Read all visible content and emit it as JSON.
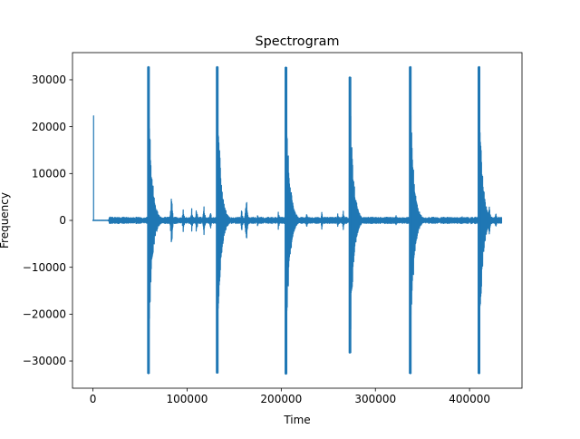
{
  "chart_data": {
    "type": "line",
    "title": "Spectrogram",
    "xlabel": "Time",
    "ylabel": "Frequency",
    "xlim": [
      -21700,
      455700
    ],
    "ylim": [
      -35800,
      35800
    ],
    "xticks": [
      0,
      100000,
      200000,
      300000,
      400000
    ],
    "xtick_labels": [
      "0",
      "100000",
      "200000",
      "300000",
      "400000"
    ],
    "yticks": [
      -30000,
      -20000,
      -10000,
      0,
      10000,
      20000,
      30000
    ],
    "ytick_labels": [
      "−30000",
      "−20000",
      "−10000",
      "0",
      "10000",
      "20000",
      "30000"
    ],
    "grid": false,
    "line_color": "#1f77b4",
    "signal_range": [
      0,
      434000
    ],
    "spike": {
      "x": 700,
      "y": 22300
    },
    "peaks": [
      {
        "x": 59000,
        "ymax": 32800,
        "ymin": -32700
      },
      {
        "x": 132000,
        "ymax": 32800,
        "ymin": -32600
      },
      {
        "x": 205000,
        "ymax": 32700,
        "ymin": -32800
      },
      {
        "x": 273000,
        "ymax": 30600,
        "ymin": -28300
      },
      {
        "x": 337000,
        "ymax": 32800,
        "ymin": -32700
      },
      {
        "x": 410000,
        "ymax": 32800,
        "ymin": -32700
      }
    ],
    "small_bursts": [
      {
        "x": 18500,
        "amp": 1400
      },
      {
        "x": 83500,
        "amp": 7500
      },
      {
        "x": 96000,
        "amp": 3500
      },
      {
        "x": 105000,
        "amp": 3000
      },
      {
        "x": 110000,
        "amp": 3500
      },
      {
        "x": 118000,
        "amp": 4000
      },
      {
        "x": 125000,
        "amp": 2500
      },
      {
        "x": 158000,
        "amp": 3000
      },
      {
        "x": 163000,
        "amp": 7000
      },
      {
        "x": 175000,
        "amp": 1500
      },
      {
        "x": 197000,
        "amp": 2500
      },
      {
        "x": 227000,
        "amp": 2000
      },
      {
        "x": 243000,
        "amp": 2500
      },
      {
        "x": 260000,
        "amp": 2000
      },
      {
        "x": 266000,
        "amp": 2500
      },
      {
        "x": 283000,
        "amp": 2000
      },
      {
        "x": 322000,
        "amp": 1500
      },
      {
        "x": 392000,
        "amp": 1200
      },
      {
        "x": 421000,
        "amp": 4500
      },
      {
        "x": 428000,
        "amp": 2500
      }
    ]
  }
}
